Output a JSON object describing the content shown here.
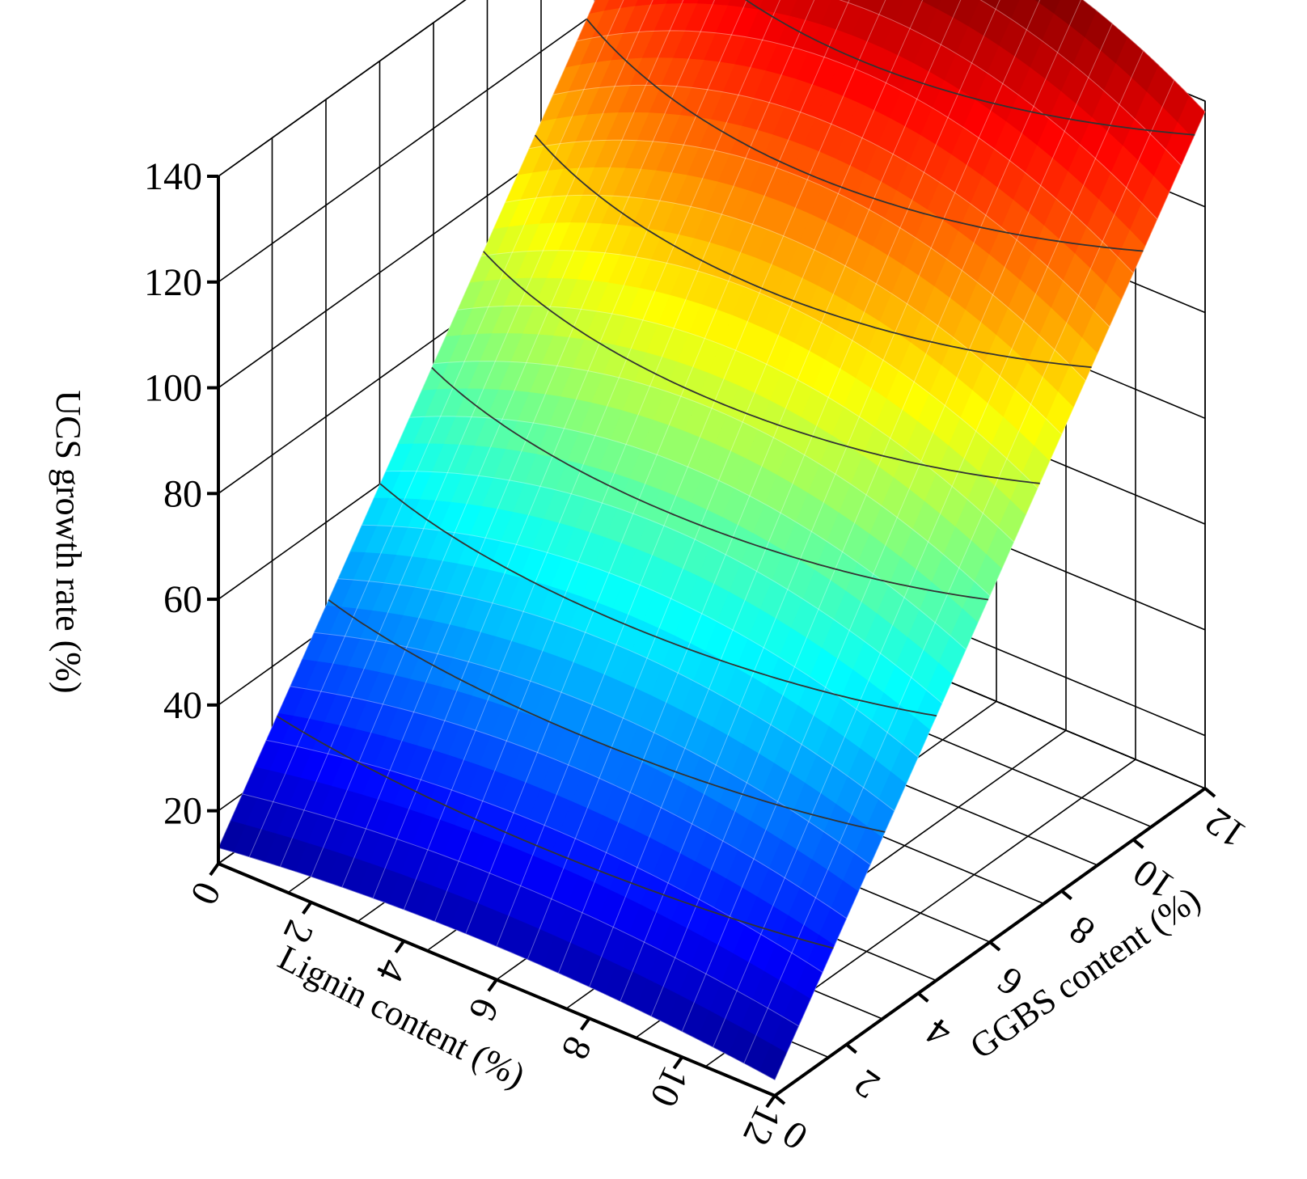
{
  "chart_data": {
    "type": "surface",
    "title": "",
    "xlabel": "Lignin content (%)",
    "ylabel": "GGBS content (%)",
    "zlabel": "UCS growth rate (%)",
    "xlim": [
      0,
      12
    ],
    "ylim": [
      0,
      12
    ],
    "zlim": [
      10,
      140
    ],
    "x_ticks": [
      "0",
      "2",
      "4",
      "6",
      "8",
      "10",
      "12"
    ],
    "y_ticks": [
      "0",
      "2",
      "4",
      "6",
      "8",
      "10",
      "12"
    ],
    "z_ticks": [
      "20",
      "40",
      "60",
      "80",
      "100",
      "120",
      "140"
    ],
    "grid": true,
    "colormap": "jet",
    "contour_lines": true,
    "surface_corner_values": [
      {
        "x": 0,
        "y": 0,
        "z": 13
      },
      {
        "x": 12,
        "y": 0,
        "z": 14
      },
      {
        "x": 0,
        "y": 12,
        "z": 138
      },
      {
        "x": 12,
        "y": 12,
        "z": 140
      }
    ],
    "peak": {
      "x": 6,
      "y": 11,
      "z": 150
    }
  }
}
